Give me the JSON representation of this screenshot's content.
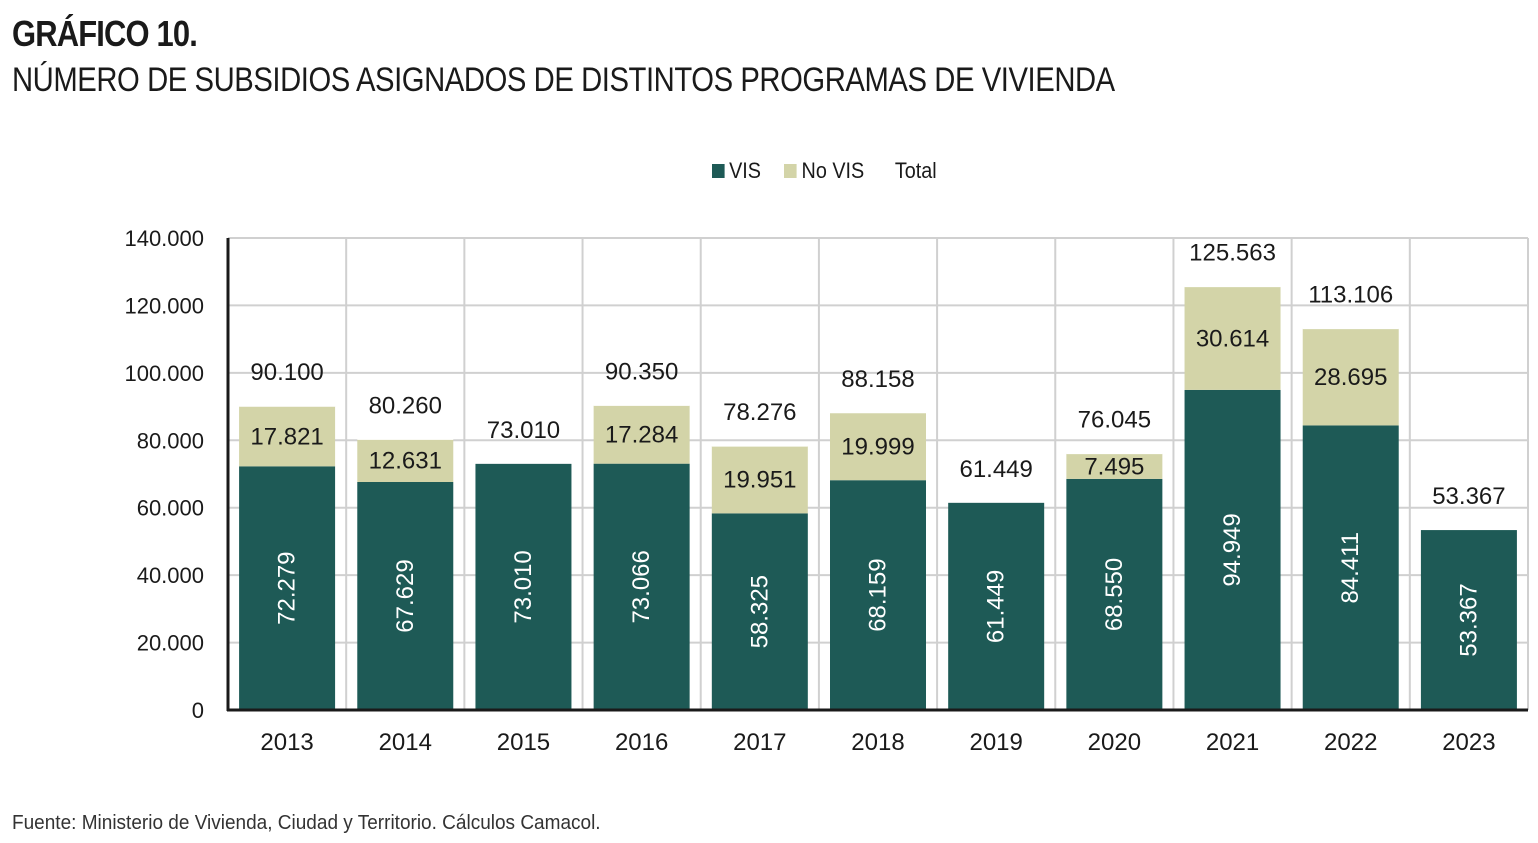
{
  "header": {
    "figure_number": "GRÁFICO 10.",
    "title": "NÚMERO DE SUBSIDIOS ASIGNADOS DE DISTINTOS PROGRAMAS DE VIVIENDA"
  },
  "legend": {
    "items": [
      {
        "label": "VIS",
        "color": "#1e5a56"
      },
      {
        "label": "No VIS",
        "color": "#d3d4a8"
      },
      {
        "label": "Total",
        "color": ""
      }
    ]
  },
  "footer": {
    "source": "Fuente: Ministerio de Vivienda, Ciudad y Territorio. Cálculos Camacol."
  },
  "chart_data": {
    "type": "bar",
    "stacked": true,
    "title": "NÚMERO DE SUBSIDIOS ASIGNADOS DE DISTINTOS PROGRAMAS DE VIVIENDA",
    "xlabel": "",
    "ylabel": "",
    "ylim": [
      0,
      140000
    ],
    "yticks": [
      0,
      20000,
      40000,
      60000,
      80000,
      100000,
      120000,
      140000
    ],
    "ytick_labels": [
      "0",
      "20.000",
      "40.000",
      "60.000",
      "80.000",
      "100.000",
      "120.000",
      "140.000"
    ],
    "grid": true,
    "legend_position": "top-center",
    "categories": [
      "2013",
      "2014",
      "2015",
      "2016",
      "2017",
      "2018",
      "2019",
      "2020",
      "2021",
      "2022",
      "2023"
    ],
    "series": [
      {
        "name": "VIS",
        "color": "#1e5a56",
        "values": [
          72279,
          67629,
          73010,
          73066,
          58325,
          68159,
          61449,
          68550,
          94949,
          84411,
          53367
        ],
        "labels": [
          "72.279",
          "67.629",
          "73.010",
          "73.066",
          "58.325",
          "68.159",
          "61.449",
          "68.550",
          "94.949",
          "84.411",
          "53.367"
        ]
      },
      {
        "name": "No VIS",
        "color": "#d3d4a8",
        "values": [
          17821,
          12631,
          null,
          17284,
          19951,
          19999,
          null,
          7495,
          30614,
          28695,
          null
        ],
        "labels": [
          "17.821",
          "12.631",
          "",
          "17.284",
          "19.951",
          "19.999",
          "",
          "7.495",
          "30.614",
          "28.695",
          ""
        ]
      },
      {
        "name": "Total",
        "values": [
          90100,
          80260,
          73010,
          90350,
          78276,
          88158,
          61449,
          76045,
          125563,
          113106,
          53367
        ],
        "labels": [
          "90.100",
          "80.260",
          "73.010",
          "90.350",
          "78.276",
          "88.158",
          "61.449",
          "76.045",
          "125.563",
          "113.106",
          "53.367"
        ]
      }
    ]
  }
}
